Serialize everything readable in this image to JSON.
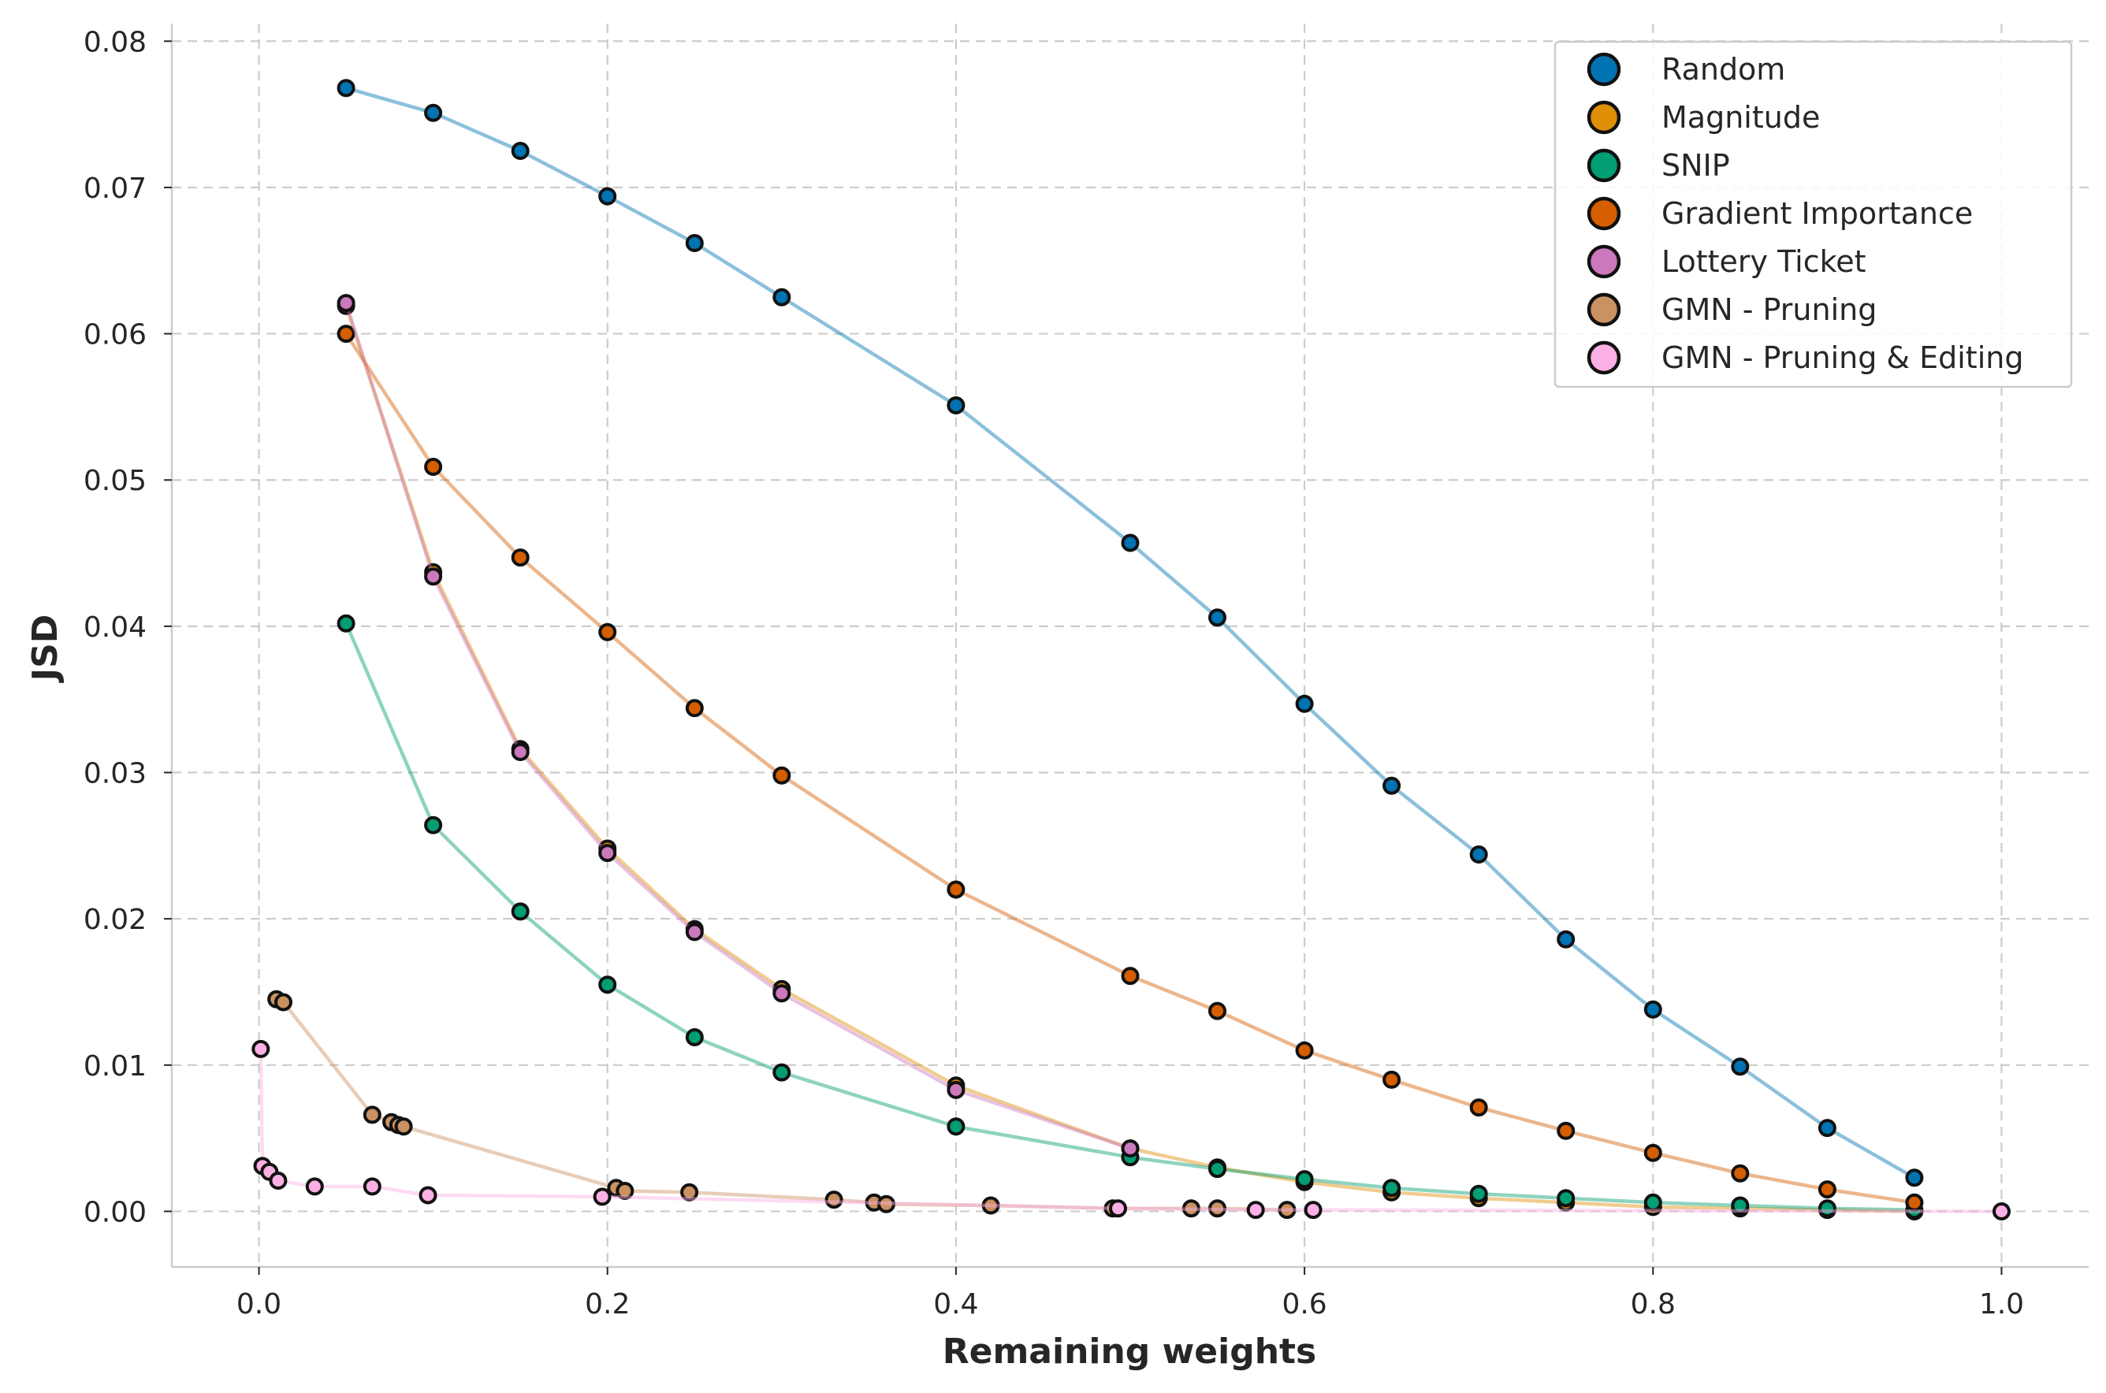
{
  "chart_data": {
    "type": "line",
    "title": "",
    "xlabel": "Remaining weights",
    "ylabel": "JSD",
    "xlim": [
      -0.05,
      1.05
    ],
    "ylim": [
      -0.0038,
      0.0812
    ],
    "xticks": [
      0.0,
      0.2,
      0.4,
      0.6,
      0.8,
      1.0
    ],
    "xtick_labels": [
      "0.0",
      "0.2",
      "0.4",
      "0.6",
      "0.8",
      "1.0"
    ],
    "yticks": [
      0.0,
      0.01,
      0.02,
      0.03,
      0.04,
      0.05,
      0.06,
      0.07,
      0.08
    ],
    "ytick_labels": [
      "0.00",
      "0.01",
      "0.02",
      "0.03",
      "0.04",
      "0.05",
      "0.06",
      "0.07",
      "0.08"
    ],
    "grid": true,
    "legend_position": "top-right",
    "series": [
      {
        "name": "Random",
        "color": "#0173b2",
        "x": [
          0.05,
          0.1,
          0.15,
          0.2,
          0.25,
          0.3,
          0.4,
          0.5,
          0.55,
          0.6,
          0.65,
          0.7,
          0.75,
          0.8,
          0.85,
          0.9,
          0.95
        ],
        "y": [
          0.0768,
          0.0751,
          0.0725,
          0.0694,
          0.0662,
          0.0625,
          0.0551,
          0.0457,
          0.0406,
          0.0347,
          0.0291,
          0.0244,
          0.0186,
          0.0138,
          0.0099,
          0.0057,
          0.0023
        ]
      },
      {
        "name": "Magnitude",
        "color": "#de8f05",
        "x": [
          0.05,
          0.1,
          0.15,
          0.2,
          0.25,
          0.3,
          0.4,
          0.5,
          0.55,
          0.6,
          0.65,
          0.7,
          0.75,
          0.8,
          0.85,
          0.9,
          0.95
        ],
        "y": [
          0.0619,
          0.0437,
          0.0316,
          0.0248,
          0.0193,
          0.0152,
          0.0086,
          0.0043,
          0.003,
          0.002,
          0.0013,
          0.0009,
          0.0006,
          0.0003,
          0.0002,
          0.0001,
          0.0
        ]
      },
      {
        "name": "SNIP",
        "color": "#029e73",
        "x": [
          0.05,
          0.1,
          0.15,
          0.2,
          0.25,
          0.3,
          0.4,
          0.5,
          0.55,
          0.6,
          0.65,
          0.7,
          0.75,
          0.8,
          0.85,
          0.9,
          0.95
        ],
        "y": [
          0.0402,
          0.0264,
          0.0205,
          0.0155,
          0.0119,
          0.0095,
          0.0058,
          0.0037,
          0.0029,
          0.0022,
          0.0016,
          0.0012,
          0.0009,
          0.0006,
          0.0004,
          0.0002,
          0.0001
        ]
      },
      {
        "name": "Gradient Importance",
        "color": "#d55e00",
        "x": [
          0.05,
          0.1,
          0.15,
          0.2,
          0.25,
          0.3,
          0.4,
          0.5,
          0.55,
          0.6,
          0.65,
          0.7,
          0.75,
          0.8,
          0.85,
          0.9,
          0.95
        ],
        "y": [
          0.06,
          0.0509,
          0.0447,
          0.0396,
          0.0344,
          0.0298,
          0.022,
          0.0161,
          0.0137,
          0.011,
          0.009,
          0.0071,
          0.0055,
          0.004,
          0.0026,
          0.0015,
          0.0006
        ]
      },
      {
        "name": "Lottery Ticket",
        "color": "#cc78bc",
        "x": [
          0.05,
          0.1,
          0.15,
          0.2,
          0.25,
          0.3,
          0.4,
          0.5
        ],
        "y": [
          0.0621,
          0.0434,
          0.0314,
          0.0245,
          0.0191,
          0.0149,
          0.0083,
          0.0043
        ]
      },
      {
        "name": "GMN - Pruning",
        "color": "#ca9161",
        "x": [
          0.01,
          0.014,
          0.065,
          0.076,
          0.08,
          0.083,
          0.205,
          0.21,
          0.247,
          0.33,
          0.353,
          0.36,
          0.42,
          0.49,
          0.535,
          0.55,
          0.59
        ],
        "y": [
          0.0145,
          0.0143,
          0.0066,
          0.0061,
          0.0059,
          0.0058,
          0.0016,
          0.0014,
          0.0013,
          0.0008,
          0.0006,
          0.0005,
          0.0004,
          0.0002,
          0.0002,
          0.0002,
          0.0001
        ]
      },
      {
        "name": "GMN - Pruning & Editing",
        "color": "#fbafe4",
        "x": [
          0.001,
          0.002,
          0.006,
          0.011,
          0.032,
          0.065,
          0.097,
          0.197,
          0.493,
          0.572,
          0.605,
          1.0
        ],
        "y": [
          0.0111,
          0.0031,
          0.0027,
          0.0021,
          0.0017,
          0.0017,
          0.0011,
          0.001,
          0.0002,
          0.0001,
          0.0001,
          0.0
        ]
      }
    ]
  }
}
